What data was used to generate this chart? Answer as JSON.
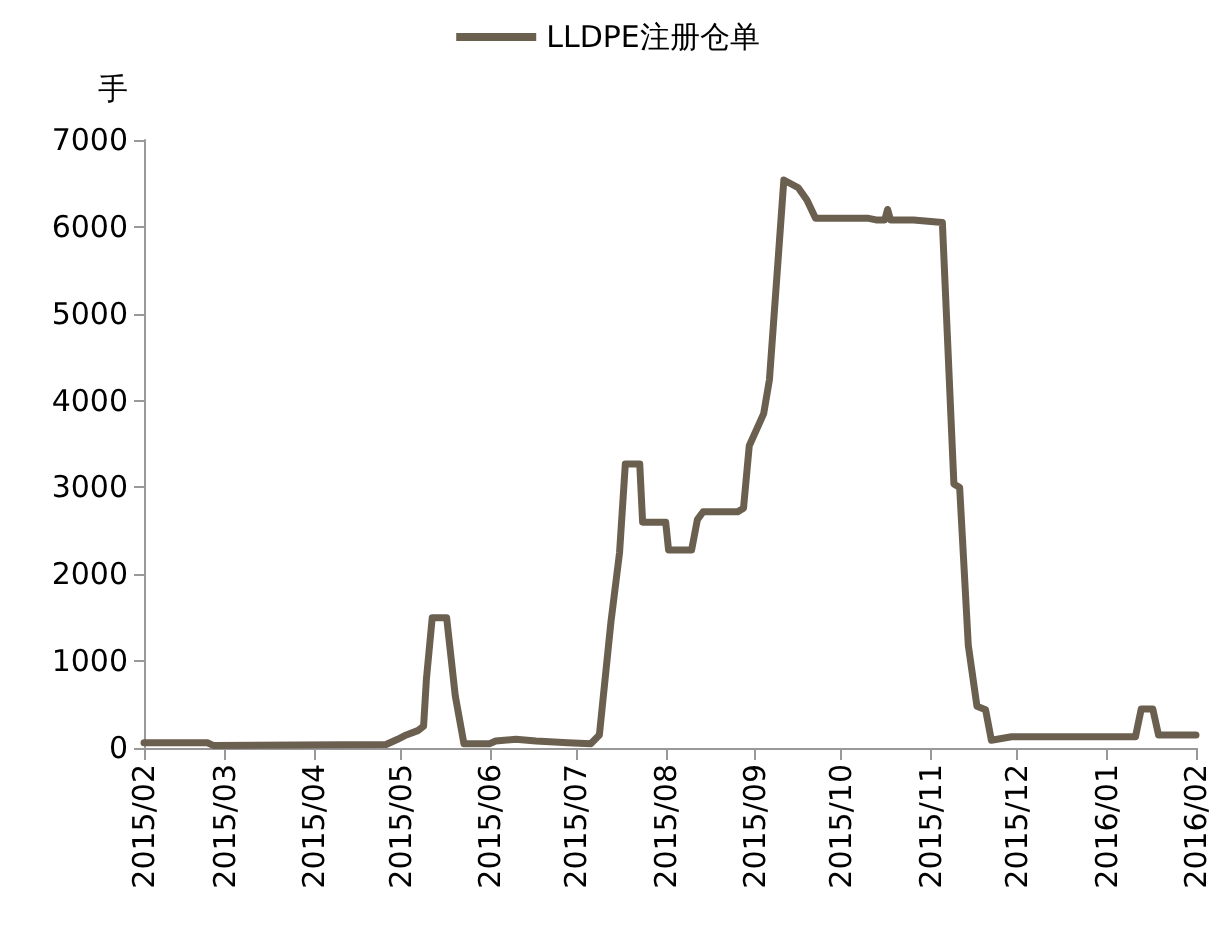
{
  "chart_data": {
    "type": "line",
    "ylabel": "手",
    "legend": "top",
    "grid": false,
    "marker": "none",
    "line_style": "solid",
    "x": [
      "2015-02-01",
      "2015-02-23",
      "2015-02-25",
      "2015-04-26",
      "2015-04-30",
      "2015-05-03",
      "2015-05-07",
      "2015-05-09",
      "2015-05-10",
      "2015-05-12",
      "2015-05-17",
      "2015-05-20",
      "2015-05-23",
      "2015-06-01",
      "2015-06-03",
      "2015-06-10",
      "2015-06-17",
      "2015-06-28",
      "2015-07-06",
      "2015-07-09",
      "2015-07-13",
      "2015-07-16",
      "2015-07-18",
      "2015-07-23",
      "2015-07-24",
      "2015-08-01",
      "2015-08-02",
      "2015-08-10",
      "2015-08-12",
      "2015-08-14",
      "2015-08-26",
      "2015-08-28",
      "2015-08-30",
      "2015-09-04",
      "2015-09-06",
      "2015-09-11",
      "2015-09-16",
      "2015-09-19",
      "2015-09-22",
      "2015-10-10",
      "2015-10-13",
      "2015-10-16",
      "2015-10-17",
      "2015-10-18",
      "2015-10-26",
      "2015-11-05",
      "2015-11-09",
      "2015-11-11",
      "2015-11-14",
      "2015-11-17",
      "2015-11-20",
      "2015-11-22",
      "2015-11-29",
      "2016-01-11",
      "2016-01-13",
      "2016-01-17",
      "2016-01-19",
      "2016-02-01"
    ],
    "series": [
      {
        "name": "LLDPE注册仓单",
        "color": "#6b6050",
        "values": [
          60,
          60,
          30,
          40,
          100,
          150,
          200,
          250,
          800,
          1500,
          1500,
          600,
          50,
          50,
          80,
          100,
          80,
          60,
          50,
          150,
          1450,
          2250,
          3270,
          3270,
          2600,
          2600,
          2280,
          2280,
          2630,
          2720,
          2720,
          2760,
          3480,
          3850,
          4240,
          6540,
          6450,
          6310,
          6100,
          6100,
          6080,
          6080,
          6200,
          6080,
          6080,
          6050,
          3040,
          3000,
          1180,
          480,
          440,
          90,
          130,
          130,
          450,
          450,
          150,
          150
        ]
      }
    ],
    "xlim": [
      "2015-02-01",
      "2016-02-01"
    ],
    "xticks": [
      {
        "value": "2015-02",
        "label": "2015/02"
      },
      {
        "value": "2015-03",
        "label": "2015/03"
      },
      {
        "value": "2015-04",
        "label": "2015/04"
      },
      {
        "value": "2015-05",
        "label": "2015/05"
      },
      {
        "value": "2015-06",
        "label": "2015/06"
      },
      {
        "value": "2015-07",
        "label": "2015/07"
      },
      {
        "value": "2015-08",
        "label": "2015/08"
      },
      {
        "value": "2015-09",
        "label": "2015/09"
      },
      {
        "value": "2015-10",
        "label": "2015/10"
      },
      {
        "value": "2015-11",
        "label": "2015/11"
      },
      {
        "value": "2015-12",
        "label": "2015/12"
      },
      {
        "value": "2016-01",
        "label": "2016/01"
      },
      {
        "value": "2016-02",
        "label": "2016/02"
      }
    ],
    "ylim": [
      0,
      7000
    ],
    "yticks": [
      0,
      1000,
      2000,
      3000,
      4000,
      5000,
      6000,
      7000
    ]
  }
}
